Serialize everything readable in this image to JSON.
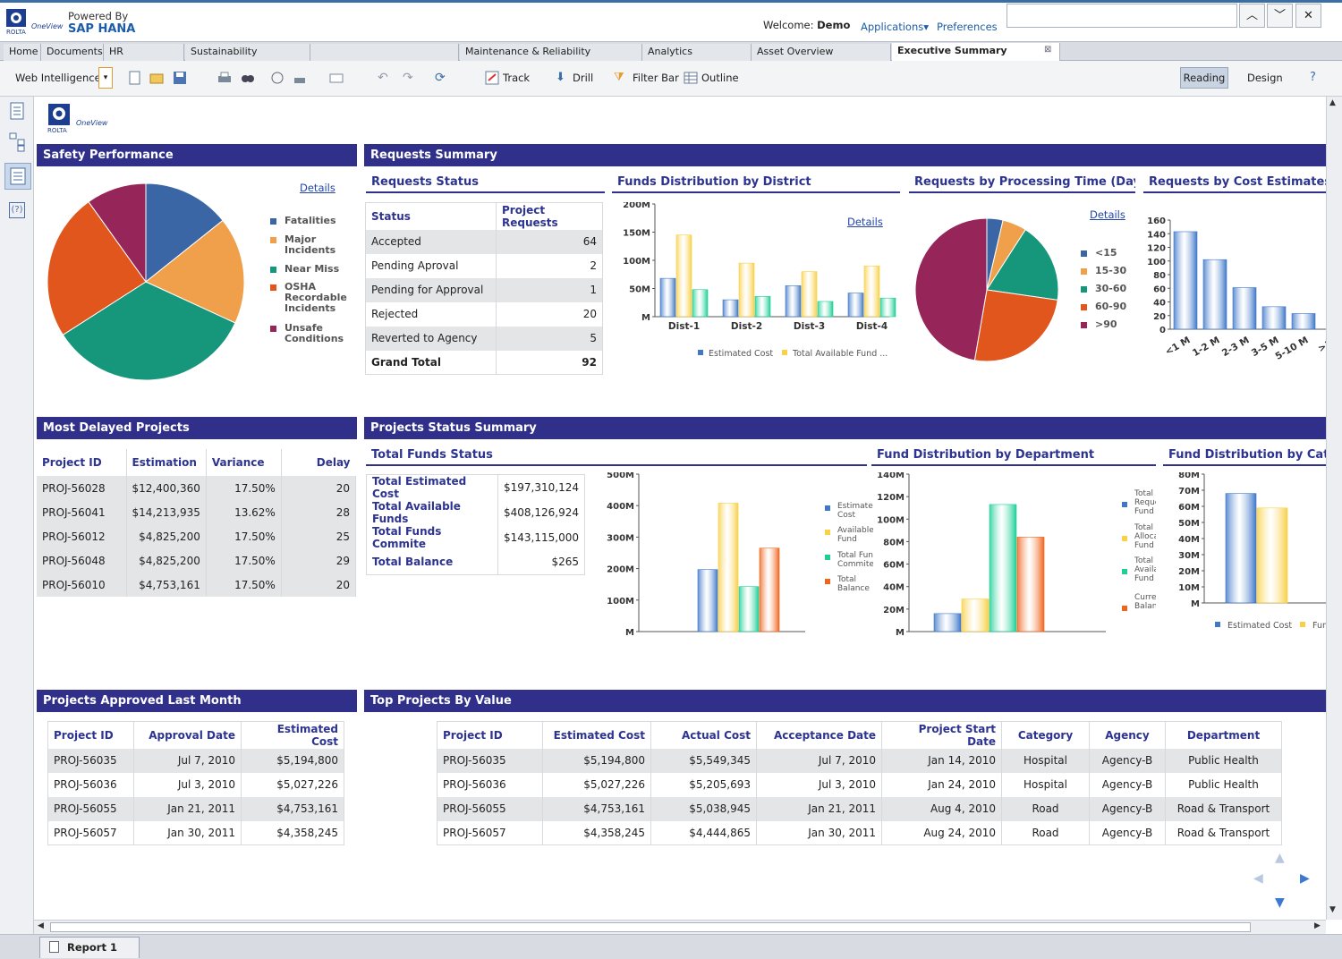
{
  "header": {
    "powered_by": "Powered By",
    "product": "SAP HANA",
    "welcome_label": "Welcome:",
    "user": "Demo",
    "applications": "Applications",
    "preferences": "Preferences"
  },
  "tabs": [
    "Home",
    "Documents",
    "HR",
    "Sustainability",
    "Maintenance & Reliability",
    "Analytics",
    "Asset Overview",
    "Executive Summary"
  ],
  "toolbar": {
    "web_intelligence": "Web Intelligence",
    "track": "Track",
    "drill": "Drill",
    "filter_bar": "Filter Bar",
    "outline": "Outline",
    "reading": "Reading",
    "design": "Design"
  },
  "status": {
    "report_tab": "Report 1"
  },
  "colors": {
    "title_bar": "#30308b",
    "blue": "#3a66a6",
    "orange": "#f0a04b",
    "green": "#16967a",
    "red": "#e0561c",
    "maroon": "#962559",
    "bar_blue": "#3f78c9",
    "bar_yellow": "#f9d046",
    "bar_green": "#1dcf96",
    "bar_orange": "#f2641c"
  },
  "safety": {
    "title": "Safety Performance",
    "details": "Details",
    "legend": [
      "Fatalities",
      "Major Incidents",
      "Near Miss",
      "OSHA Recordable Incidents",
      "Unsafe Conditions"
    ],
    "slices": [
      13,
      16,
      31,
      22,
      9
    ]
  },
  "requests_summary": {
    "title": "Requests Summary"
  },
  "requests_status": {
    "title": "Requests Status",
    "headers": [
      "Status",
      "Project Requests"
    ],
    "rows": [
      [
        "Accepted",
        "64"
      ],
      [
        "Pending Aproval",
        "2"
      ],
      [
        "Pending for Approval",
        "1"
      ],
      [
        "Rejected",
        "20"
      ],
      [
        "Reverted to Agency",
        "5"
      ]
    ],
    "total": [
      "Grand Total",
      "92"
    ]
  },
  "funds_district": {
    "title": "Funds Distribution by District",
    "details": "Details",
    "yticks": [
      "200M",
      "150M",
      "100M",
      "50M",
      "M"
    ],
    "categories": [
      "Dist-1",
      "Dist-2",
      "Dist-3",
      "Dist-4"
    ],
    "legend": [
      "Estimated Cost",
      "Total Available Fund ..."
    ]
  },
  "processing_time": {
    "title": "Requests by Processing Time (Days)",
    "details": "Details",
    "legend": [
      "<15",
      "15-30",
      "30-60",
      "60-90",
      ">90"
    ],
    "slices": [
      4,
      6,
      20,
      28,
      52
    ]
  },
  "cost_estimates": {
    "title": "Requests by Cost Estimates",
    "yticks": [
      "160",
      "140",
      "120",
      "100",
      "80",
      "60",
      "40",
      "20",
      "0"
    ],
    "categories": [
      "<1 M",
      "1-2 M",
      "2-3 M",
      "3-5 M",
      "5-10 M",
      ">10"
    ]
  },
  "delayed": {
    "title": "Most Delayed Projects",
    "headers": [
      "Project ID",
      "Estimation",
      "Variance",
      "Delay"
    ],
    "rows": [
      [
        "PROJ-56028",
        "$12,400,360",
        "17.50%",
        "20"
      ],
      [
        "PROJ-56041",
        "$14,213,935",
        "13.62%",
        "28"
      ],
      [
        "PROJ-56012",
        "$4,825,200",
        "17.50%",
        "25"
      ],
      [
        "PROJ-56048",
        "$4,825,200",
        "17.50%",
        "29"
      ],
      [
        "PROJ-56010",
        "$4,753,161",
        "17.50%",
        "20"
      ]
    ]
  },
  "status_summary": {
    "title": "Projects Status Summary"
  },
  "total_funds": {
    "title": "Total Funds Status",
    "rows": [
      [
        "Total Estimated Cost",
        "$197,310,124"
      ],
      [
        "Total Available Funds",
        "$408,126,924"
      ],
      [
        "Total Funds Commite",
        "$143,115,000"
      ],
      [
        "Total Balance",
        "$265"
      ]
    ],
    "yticks": [
      "500M",
      "400M",
      "300M",
      "200M",
      "100M",
      "M"
    ],
    "legend": [
      "Estimated Cost",
      "Available Fund",
      "Total Funds Commited",
      "Total Balance"
    ]
  },
  "fund_dept": {
    "title": "Fund Distribution by Department",
    "yticks": [
      "140M",
      "120M",
      "100M",
      "80M",
      "60M",
      "40M",
      "20M",
      "M"
    ],
    "legend": [
      "Total Requested Fund",
      "Total Allocated Fund",
      "Total Available Fund",
      "Current Balance"
    ]
  },
  "fund_category": {
    "title": "Fund Distribution by Categ",
    "yticks": [
      "80M",
      "70M",
      "60M",
      "50M",
      "40M",
      "30M",
      "20M",
      "10M",
      "M"
    ],
    "legend": [
      "Estimated Cost",
      "Fund Comn"
    ]
  },
  "approved": {
    "title": "Projects Approved Last Month",
    "headers": [
      "Project ID",
      "Approval Date",
      "Estimated Cost"
    ],
    "rows": [
      [
        "PROJ-56035",
        "Jul 7, 2010",
        "$5,194,800"
      ],
      [
        "PROJ-56036",
        "Jul 3, 2010",
        "$5,027,226"
      ],
      [
        "PROJ-56055",
        "Jan 21, 2011",
        "$4,753,161"
      ],
      [
        "PROJ-56057",
        "Jan 30, 2011",
        "$4,358,245"
      ]
    ]
  },
  "top_projects": {
    "title": "Top Projects By Value",
    "headers": [
      "Project ID",
      "Estimated Cost",
      "Actual Cost",
      "Acceptance Date",
      "Project Start Date",
      "Category",
      "Agency",
      "Department"
    ],
    "rows": [
      [
        "PROJ-56035",
        "$5,194,800",
        "$5,549,345",
        "Jul 7, 2010",
        "Jan 14, 2010",
        "Hospital",
        "Agency-B",
        "Public Health"
      ],
      [
        "PROJ-56036",
        "$5,027,226",
        "$5,205,693",
        "Jul 3, 2010",
        "Jan 24, 2010",
        "Hospital",
        "Agency-B",
        "Public Health"
      ],
      [
        "PROJ-56055",
        "$4,753,161",
        "$5,038,945",
        "Jan 21, 2011",
        "Aug 4, 2010",
        "Road",
        "Agency-B",
        "Road & Transport"
      ],
      [
        "PROJ-56057",
        "$4,358,245",
        "$4,444,865",
        "Jan 30, 2011",
        "Aug 24, 2010",
        "Road",
        "Agency-B",
        "Road & Transport"
      ]
    ]
  },
  "chart_data": [
    {
      "type": "pie",
      "title": "Safety Performance",
      "categories": [
        "Fatalities",
        "Major Incidents",
        "Near Miss",
        "OSHA Recordable Incidents",
        "Unsafe Conditions"
      ],
      "values": [
        13,
        16,
        31,
        22,
        9
      ]
    },
    {
      "type": "bar",
      "title": "Funds Distribution by District",
      "categories": [
        "Dist-1",
        "Dist-2",
        "Dist-3",
        "Dist-4"
      ],
      "ylim": [
        0,
        200
      ],
      "series": [
        {
          "name": "Estimated Cost",
          "values": [
            68,
            30,
            55,
            42
          ]
        },
        {
          "name": "Total Available Fund ...",
          "values": [
            145,
            95,
            80,
            90
          ]
        },
        {
          "name": "",
          "values": [
            48,
            36,
            27,
            33
          ]
        }
      ]
    },
    {
      "type": "pie",
      "title": "Requests by Processing Time (Days)",
      "categories": [
        "<15",
        "15-30",
        "30-60",
        "60-90",
        ">90"
      ],
      "values": [
        4,
        6,
        20,
        28,
        52
      ]
    },
    {
      "type": "bar",
      "title": "Requests by Cost Estimates",
      "categories": [
        "<1 M",
        "1-2 M",
        "2-3 M",
        "3-5 M",
        "5-10 M",
        ">10"
      ],
      "values": [
        143,
        102,
        61,
        33,
        23,
        0
      ],
      "ylim": [
        0,
        160
      ]
    },
    {
      "type": "bar",
      "title": "Total Funds Status",
      "categories": [
        "Estimated Cost",
        "Available Fund",
        "Total Funds Commited",
        "Total Balance"
      ],
      "values": [
        197,
        408,
        143,
        265
      ],
      "ylim": [
        0,
        500
      ]
    },
    {
      "type": "bar",
      "title": "Fund Distribution by Department",
      "categories": [
        "Total Requested Fund",
        "Total Allocated Fund",
        "Total Available Fund",
        "Current Balance"
      ],
      "values": [
        16,
        29,
        113,
        84
      ],
      "ylim": [
        0,
        140
      ]
    },
    {
      "type": "bar",
      "title": "Fund Distribution by Categ",
      "categories": [
        "Estimated Cost",
        "Fund Comn"
      ],
      "values": [
        68,
        59
      ],
      "ylim": [
        0,
        80
      ]
    }
  ]
}
